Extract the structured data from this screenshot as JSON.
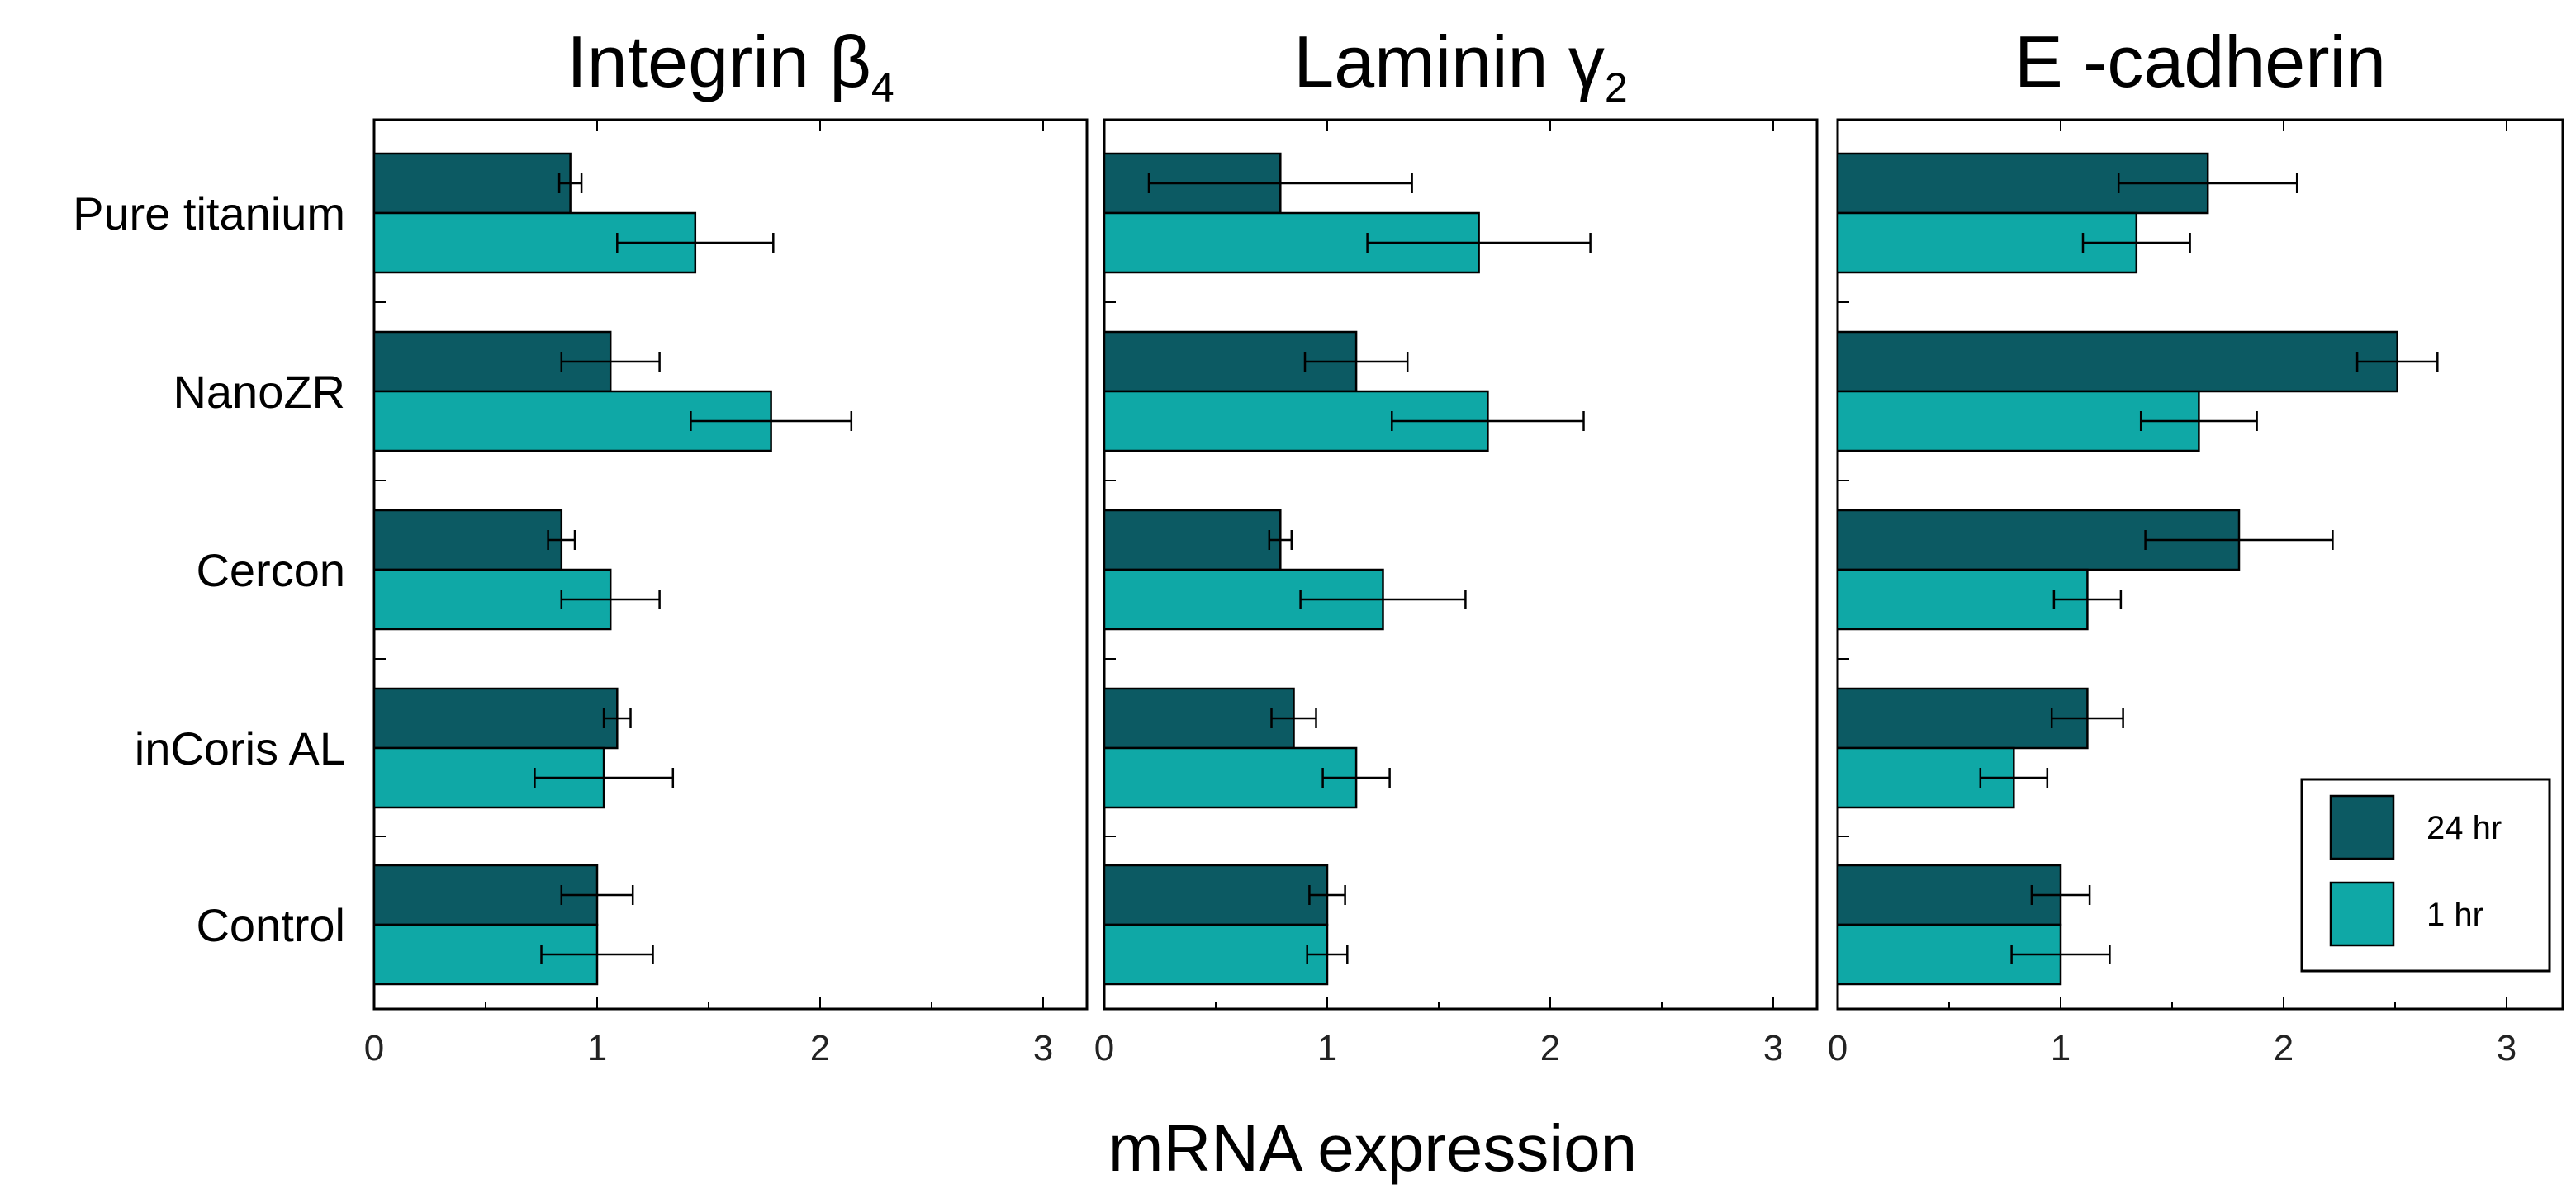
{
  "chart_data": {
    "type": "bar",
    "orientation": "horizontal",
    "xlabel": "mRNA expression",
    "xlim": [
      0,
      3.2
    ],
    "xticks": [
      0,
      1,
      2,
      3
    ],
    "xtick_labels": [
      "0",
      "1",
      "2",
      "3"
    ],
    "categories": [
      "Pure titanium",
      "NanoZR",
      "Cercon",
      "inCoris AL",
      "Control"
    ],
    "series_names": [
      "24 hr",
      "1 hr"
    ],
    "colors": {
      "24 hr": "#0c5a63",
      "1 hr": "#0fa8a6"
    },
    "legend": {
      "entries": [
        "24 hr",
        "1 hr"
      ],
      "placement": "bottom-right of last panel"
    },
    "panels": [
      {
        "title": "Integrin β",
        "title_sub": "4",
        "series": [
          {
            "name": "24 hr",
            "values": [
              0.88,
              1.06,
              0.84,
              1.09,
              1.0
            ],
            "errors": [
              0.05,
              0.22,
              0.06,
              0.06,
              0.16
            ]
          },
          {
            "name": "1 hr",
            "values": [
              1.44,
              1.78,
              1.06,
              1.03,
              1.0
            ],
            "errors": [
              0.35,
              0.36,
              0.22,
              0.31,
              0.25
            ]
          }
        ]
      },
      {
        "title": "Laminin γ",
        "title_sub": "2",
        "series": [
          {
            "name": "24 hr",
            "values": [
              0.79,
              1.13,
              0.79,
              0.85,
              1.0
            ],
            "errors": [
              0.59,
              0.23,
              0.05,
              0.1,
              0.08
            ]
          },
          {
            "name": "1 hr",
            "values": [
              1.68,
              1.72,
              1.25,
              1.13,
              1.0
            ],
            "errors": [
              0.5,
              0.43,
              0.37,
              0.15,
              0.09
            ]
          }
        ]
      },
      {
        "title": "E -cadherin",
        "title_sub": "",
        "series": [
          {
            "name": "24 hr",
            "values": [
              1.66,
              2.51,
              1.8,
              1.12,
              1.0
            ],
            "errors": [
              0.4,
              0.18,
              0.42,
              0.16,
              0.13
            ]
          },
          {
            "name": "1 hr",
            "values": [
              1.34,
              1.62,
              1.12,
              0.79,
              1.0
            ],
            "errors": [
              0.24,
              0.26,
              0.15,
              0.15,
              0.22
            ]
          }
        ]
      }
    ]
  }
}
